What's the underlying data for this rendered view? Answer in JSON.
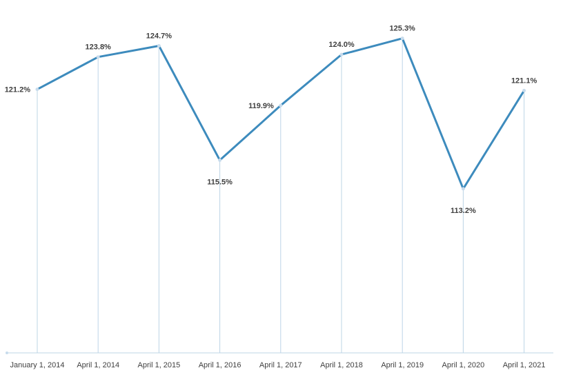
{
  "chart_data": {
    "type": "line",
    "title": "",
    "xlabel": "",
    "ylabel": "",
    "categories": [
      "January 1, 2014",
      "April 1, 2014",
      "April 1, 2015",
      "April 1, 2016",
      "April 1, 2017",
      "April 1, 2018",
      "April 1, 2019",
      "April 1, 2020",
      "April 1, 2021"
    ],
    "values": [
      121.2,
      123.8,
      124.7,
      115.5,
      119.9,
      124.0,
      125.3,
      113.2,
      121.1
    ],
    "data_labels": [
      "121.2%",
      "123.8%",
      "124.7%",
      "115.5%",
      "119.9%",
      "124.0%",
      "125.3%",
      "113.2%",
      "121.1%"
    ],
    "ylim": [
      100,
      126.5
    ],
    "value_axis_visible": false,
    "gridlines": false,
    "drop_lines": true,
    "legend": "none",
    "colors": {
      "line": "#3d8bbd",
      "marker": "#c7dbec",
      "drop_line": "#bcd4e6",
      "axis": "#bcd4e6",
      "text": "#404040"
    }
  }
}
